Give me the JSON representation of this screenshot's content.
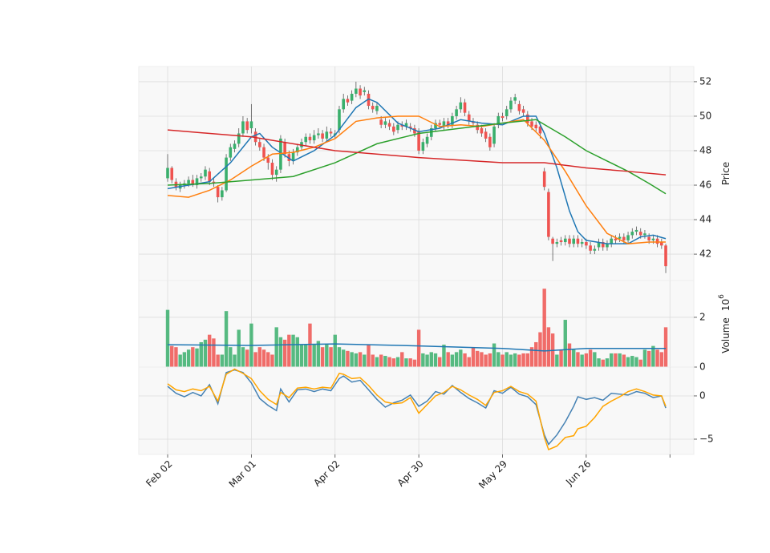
{
  "chart_data": [
    {
      "type": "candlestick",
      "ylabel": "Price",
      "ylim": [
        40.47,
        52.88
      ],
      "yticks": [
        42,
        44,
        46,
        48,
        50,
        52
      ],
      "grid": true,
      "up_color": "#3aaf6c",
      "down_color": "#ef5350",
      "open": [
        46.4,
        47.0,
        46.2,
        45.8,
        46.0,
        46.1,
        46.3,
        46.0,
        46.4,
        46.5,
        46.8,
        46.2,
        45.9,
        45.3,
        45.7,
        47.6,
        48.1,
        48.4,
        49.0,
        49.7,
        49.3,
        49.1,
        48.5,
        48.2,
        47.6,
        47.3,
        46.6,
        46.9,
        48.5,
        47.8,
        47.4,
        47.9,
        48.2,
        48.5,
        48.8,
        48.6,
        48.9,
        49.0,
        48.7,
        49.1,
        48.9,
        49.2,
        50.4,
        51.0,
        50.9,
        51.3,
        51.6,
        51.4,
        51.3,
        50.6,
        50.3,
        49.8,
        49.5,
        49.6,
        49.4,
        49.2,
        49.5,
        49.4,
        49.4,
        49.3,
        49.1,
        48.0,
        48.4,
        48.8,
        49.3,
        49.6,
        49.4,
        49.7,
        49.5,
        50.0,
        50.4,
        50.8,
        50.1,
        49.7,
        49.5,
        49.3,
        49.1,
        48.8,
        48.4,
        49.5,
        50.0,
        50.0,
        50.4,
        50.9,
        50.7,
        50.4,
        50.1,
        49.7,
        49.5,
        49.4,
        46.8,
        45.6,
        42.9,
        42.6,
        42.8,
        42.7,
        42.9,
        42.6,
        42.9,
        42.6,
        42.7,
        42.5,
        42.2,
        42.4,
        42.7,
        42.4,
        42.6,
        42.9,
        42.9,
        43.0,
        42.8,
        43.1,
        43.3,
        43.3,
        43.1,
        43.0,
        42.8,
        42.9,
        42.7,
        42.5
      ],
      "close": [
        47.0,
        46.3,
        45.9,
        46.0,
        46.1,
        46.3,
        46.0,
        46.4,
        46.5,
        46.9,
        46.2,
        46.1,
        45.3,
        45.7,
        47.6,
        48.2,
        48.4,
        49.0,
        49.7,
        49.2,
        49.7,
        48.5,
        48.2,
        47.6,
        47.3,
        46.6,
        46.9,
        48.7,
        47.8,
        47.4,
        47.9,
        48.2,
        48.5,
        48.8,
        48.6,
        48.9,
        49.0,
        48.7,
        49.1,
        49.0,
        49.0,
        50.4,
        51.0,
        50.8,
        51.3,
        51.6,
        51.2,
        51.5,
        50.6,
        50.4,
        50.6,
        49.5,
        49.7,
        49.4,
        49.1,
        49.5,
        49.4,
        49.6,
        49.3,
        49.0,
        48.0,
        48.5,
        48.8,
        49.3,
        49.6,
        49.5,
        49.7,
        49.5,
        50.0,
        50.4,
        50.8,
        50.2,
        49.7,
        49.6,
        49.2,
        49.0,
        48.7,
        48.2,
        49.4,
        50.0,
        49.9,
        50.4,
        50.9,
        51.1,
        50.3,
        50.2,
        49.6,
        49.4,
        49.3,
        49.0,
        45.9,
        43.0,
        42.6,
        42.7,
        42.7,
        42.9,
        42.6,
        42.9,
        42.6,
        42.7,
        42.5,
        42.2,
        42.3,
        42.7,
        42.4,
        42.6,
        42.9,
        42.8,
        43.0,
        42.8,
        43.1,
        43.3,
        43.4,
        43.1,
        43.2,
        42.8,
        42.9,
        42.6,
        42.5,
        41.3
      ],
      "high": [
        47.8,
        47.1,
        46.4,
        46.2,
        46.3,
        46.5,
        46.6,
        46.6,
        46.7,
        47.1,
        47.0,
        46.4,
        46.0,
        45.9,
        47.8,
        48.4,
        48.6,
        49.3,
        50.0,
        49.9,
        50.7,
        49.3,
        48.7,
        48.4,
        47.8,
        47.5,
        47.1,
        48.9,
        48.7,
        48.0,
        48.1,
        48.4,
        48.7,
        49.0,
        49.0,
        49.2,
        49.3,
        49.2,
        49.4,
        49.3,
        49.2,
        50.6,
        51.3,
        51.2,
        51.5,
        52.0,
        51.8,
        51.7,
        51.5,
        50.8,
        50.8,
        50.0,
        49.9,
        49.8,
        49.6,
        49.7,
        49.7,
        49.8,
        49.6,
        49.5,
        49.3,
        48.7,
        49.0,
        49.5,
        49.8,
        49.8,
        49.9,
        49.9,
        50.2,
        50.6,
        51.1,
        51.0,
        50.3,
        49.9,
        49.7,
        49.5,
        49.3,
        49.0,
        49.6,
        50.2,
        50.2,
        50.6,
        51.1,
        51.3,
        50.9,
        50.6,
        50.3,
        49.9,
        49.7,
        49.6,
        47.0,
        45.8,
        43.0,
        42.9,
        43.0,
        43.1,
        43.1,
        43.1,
        43.1,
        42.9,
        42.9,
        42.7,
        42.5,
        42.9,
        42.9,
        42.8,
        43.1,
        43.1,
        43.2,
        43.2,
        43.3,
        43.5,
        43.6,
        43.5,
        43.4,
        43.2,
        43.1,
        43.1,
        42.9,
        42.6
      ],
      "low": [
        46.2,
        46.1,
        45.7,
        45.6,
        45.8,
        45.9,
        45.9,
        45.8,
        46.2,
        46.3,
        46.0,
        45.9,
        45.0,
        45.1,
        45.6,
        47.4,
        47.9,
        48.2,
        48.8,
        49.0,
        49.0,
        48.3,
        48.0,
        47.4,
        46.9,
        46.3,
        46.2,
        46.7,
        47.6,
        47.1,
        47.2,
        47.7,
        48.0,
        48.3,
        48.4,
        48.4,
        48.7,
        48.5,
        48.5,
        48.8,
        48.7,
        49.0,
        50.2,
        50.6,
        50.7,
        51.1,
        51.0,
        51.2,
        50.4,
        50.2,
        50.1,
        49.3,
        49.3,
        49.2,
        48.9,
        49.0,
        49.2,
        49.2,
        49.1,
        48.8,
        47.8,
        47.8,
        48.2,
        48.6,
        49.1,
        49.3,
        49.2,
        49.3,
        49.3,
        49.8,
        50.2,
        50.0,
        49.5,
        49.4,
        49.0,
        48.8,
        48.5,
        48.0,
        48.2,
        49.3,
        49.7,
        49.8,
        50.2,
        50.7,
        50.1,
        50.0,
        49.4,
        49.2,
        49.1,
        48.7,
        45.7,
        42.8,
        41.6,
        42.4,
        42.5,
        42.5,
        42.4,
        42.4,
        42.4,
        42.4,
        42.3,
        42.0,
        42.0,
        42.2,
        42.2,
        42.2,
        42.4,
        42.6,
        42.7,
        42.6,
        42.6,
        42.9,
        43.1,
        42.9,
        42.9,
        42.6,
        42.6,
        42.4,
        42.3,
        40.9
      ],
      "series": [
        {
          "color": "#1f77b4",
          "x": [
            0,
            5,
            10,
            15,
            20,
            22,
            25,
            30,
            35,
            40,
            45,
            48,
            50,
            55,
            60,
            65,
            70,
            75,
            80,
            85,
            88,
            90,
            93,
            96,
            98,
            100,
            105,
            110,
            113,
            116,
            119
          ],
          "values": [
            45.8,
            46.0,
            46.2,
            47.3,
            48.8,
            49.0,
            48.2,
            47.4,
            48.0,
            48.9,
            50.5,
            51.0,
            50.8,
            49.6,
            49.1,
            49.3,
            49.8,
            49.6,
            49.5,
            50.0,
            50.0,
            49.0,
            47.0,
            44.5,
            43.3,
            42.8,
            42.6,
            42.6,
            43.0,
            43.1,
            42.9
          ]
        },
        {
          "color": "#ff7f0e",
          "x": [
            0,
            5,
            10,
            15,
            20,
            25,
            30,
            35,
            40,
            45,
            50,
            55,
            60,
            65,
            70,
            75,
            80,
            85,
            90,
            95,
            100,
            105,
            110,
            115,
            119
          ],
          "values": [
            45.4,
            45.3,
            45.7,
            46.3,
            47.1,
            47.8,
            47.9,
            48.2,
            48.7,
            49.7,
            49.9,
            50.0,
            50.0,
            49.4,
            49.5,
            49.4,
            49.6,
            49.8,
            48.6,
            46.8,
            44.8,
            43.2,
            42.6,
            42.7,
            42.7
          ]
        },
        {
          "color": "#2ca02c",
          "x": [
            0,
            10,
            20,
            30,
            40,
            50,
            60,
            70,
            80,
            88,
            95,
            100,
            105,
            110,
            115,
            119
          ],
          "values": [
            46.0,
            46.1,
            46.3,
            46.5,
            47.3,
            48.4,
            49.0,
            49.3,
            49.6,
            49.8,
            48.8,
            48.0,
            47.4,
            46.8,
            46.1,
            45.5
          ]
        },
        {
          "color": "#d62728",
          "x": [
            0,
            20,
            40,
            60,
            80,
            90,
            100,
            110,
            119
          ],
          "values": [
            49.2,
            48.8,
            48.0,
            47.6,
            47.3,
            47.3,
            47.0,
            46.8,
            46.6
          ]
        }
      ]
    },
    {
      "type": "bar",
      "ylabel": "Volume",
      "ylabel_offset_base": "10",
      "ylabel_offset_exponent": "6",
      "ylim": [
        0,
        3.48
      ],
      "yticks": [
        0,
        2
      ],
      "grid": true,
      "values": [
        2.3,
        0.85,
        0.8,
        0.5,
        0.6,
        0.7,
        0.8,
        0.75,
        1.0,
        1.1,
        1.3,
        1.15,
        0.5,
        0.5,
        2.25,
        0.8,
        0.5,
        1.5,
        0.8,
        0.7,
        1.75,
        0.6,
        0.8,
        0.7,
        0.6,
        0.5,
        1.6,
        1.2,
        1.1,
        1.3,
        1.3,
        1.2,
        0.9,
        0.9,
        1.75,
        0.9,
        1.05,
        0.8,
        0.9,
        0.8,
        1.3,
        0.8,
        0.7,
        0.65,
        0.6,
        0.55,
        0.6,
        0.5,
        0.9,
        0.5,
        0.4,
        0.5,
        0.45,
        0.4,
        0.35,
        0.4,
        0.6,
        0.35,
        0.35,
        0.3,
        1.5,
        0.55,
        0.5,
        0.6,
        0.55,
        0.4,
        0.9,
        0.6,
        0.5,
        0.6,
        0.7,
        0.55,
        0.4,
        0.8,
        0.65,
        0.6,
        0.5,
        0.55,
        0.95,
        0.6,
        0.5,
        0.6,
        0.5,
        0.55,
        0.5,
        0.55,
        0.55,
        0.8,
        1.0,
        1.4,
        3.15,
        1.6,
        1.35,
        0.5,
        0.7,
        1.9,
        0.95,
        0.7,
        0.6,
        0.5,
        0.55,
        0.7,
        0.6,
        0.35,
        0.3,
        0.35,
        0.55,
        0.55,
        0.55,
        0.5,
        0.4,
        0.45,
        0.4,
        0.3,
        0.7,
        0.65,
        0.85,
        0.7,
        0.6,
        1.6
      ],
      "series": [
        {
          "color": "#1f77b4",
          "x": [
            0,
            20,
            40,
            60,
            80,
            90,
            100,
            119
          ],
          "values": [
            0.9,
            0.87,
            0.93,
            0.85,
            0.75,
            0.65,
            0.75,
            0.75
          ]
        }
      ]
    },
    {
      "type": "line",
      "ylim": [
        -6.76,
        3.33
      ],
      "yticks": [
        0,
        {
          "value": -5,
          "label": "−5"
        }
      ],
      "grid": true,
      "xlim": [
        -6.9,
        125.7
      ],
      "xticks": [
        {
          "value": 0,
          "label": "Feb 02"
        },
        {
          "value": 20,
          "label": "Mar 01"
        },
        {
          "value": 40,
          "label": "Apr 02"
        },
        {
          "value": 60,
          "label": "Apr 30"
        },
        {
          "value": 80,
          "label": "May 29"
        },
        {
          "value": 100,
          "label": "Jun 26"
        },
        {
          "value": 120,
          "label": null
        }
      ],
      "series": [
        {
          "color": "#4682b4",
          "x": [
            0,
            2,
            4,
            6,
            8,
            10,
            12,
            14,
            16,
            18,
            20,
            22,
            24,
            26,
            27,
            29,
            31,
            33,
            35,
            37,
            39,
            41,
            42,
            44,
            46,
            48,
            50,
            52,
            54,
            56,
            58,
            60,
            62,
            64,
            66,
            68,
            70,
            72,
            74,
            76,
            78,
            80,
            82,
            84,
            86,
            88,
            90,
            91,
            93,
            95,
            97,
            98,
            100,
            102,
            104,
            106,
            108,
            110,
            112,
            114,
            116,
            118,
            119
          ],
          "values": [
            1.1,
            0.3,
            -0.1,
            0.4,
            0.0,
            1.3,
            -0.9,
            2.7,
            3.0,
            2.7,
            1.5,
            -0.3,
            -1.1,
            -1.7,
            0.8,
            -0.7,
            0.7,
            0.8,
            0.5,
            0.8,
            0.6,
            2.0,
            2.3,
            1.6,
            1.8,
            0.7,
            -0.4,
            -1.3,
            -0.8,
            -0.5,
            0.1,
            -1.2,
            -0.6,
            0.5,
            0.2,
            1.2,
            0.4,
            -0.3,
            -0.8,
            -1.4,
            0.6,
            0.3,
            1.0,
            0.2,
            -0.1,
            -1.0,
            -4.5,
            -5.6,
            -4.5,
            -3.0,
            -1.2,
            -0.1,
            -0.4,
            -0.2,
            -0.5,
            0.3,
            0.2,
            0.1,
            0.5,
            0.3,
            -0.2,
            0.0,
            -1.4
          ]
        },
        {
          "color": "#ffa500",
          "x": [
            0,
            2,
            4,
            6,
            8,
            10,
            12,
            14,
            16,
            18,
            20,
            22,
            24,
            26,
            27,
            29,
            31,
            33,
            35,
            37,
            39,
            41,
            42,
            44,
            46,
            48,
            50,
            52,
            54,
            56,
            58,
            60,
            62,
            64,
            66,
            68,
            70,
            72,
            74,
            76,
            78,
            80,
            82,
            84,
            86,
            88,
            90,
            91,
            93,
            95,
            97,
            98,
            100,
            102,
            104,
            106,
            108,
            110,
            112,
            114,
            116,
            118,
            119
          ],
          "values": [
            1.4,
            0.7,
            0.5,
            0.8,
            0.6,
            1.1,
            -0.6,
            2.5,
            3.1,
            2.6,
            2.0,
            0.6,
            -0.4,
            -1.0,
            0.4,
            -0.2,
            0.9,
            1.0,
            0.8,
            1.0,
            0.9,
            2.6,
            2.5,
            2.0,
            2.1,
            1.2,
            0.1,
            -0.7,
            -0.9,
            -0.8,
            -0.2,
            -2.0,
            -1.0,
            0.0,
            0.4,
            1.1,
            0.7,
            0.1,
            -0.4,
            -1.1,
            0.4,
            0.6,
            1.1,
            0.5,
            0.2,
            -0.6,
            -4.8,
            -6.2,
            -5.8,
            -4.8,
            -4.6,
            -3.8,
            -3.5,
            -2.5,
            -1.2,
            -0.6,
            -0.1,
            0.5,
            0.8,
            0.5,
            0.1,
            0.0,
            -1.2
          ]
        }
      ]
    }
  ]
}
